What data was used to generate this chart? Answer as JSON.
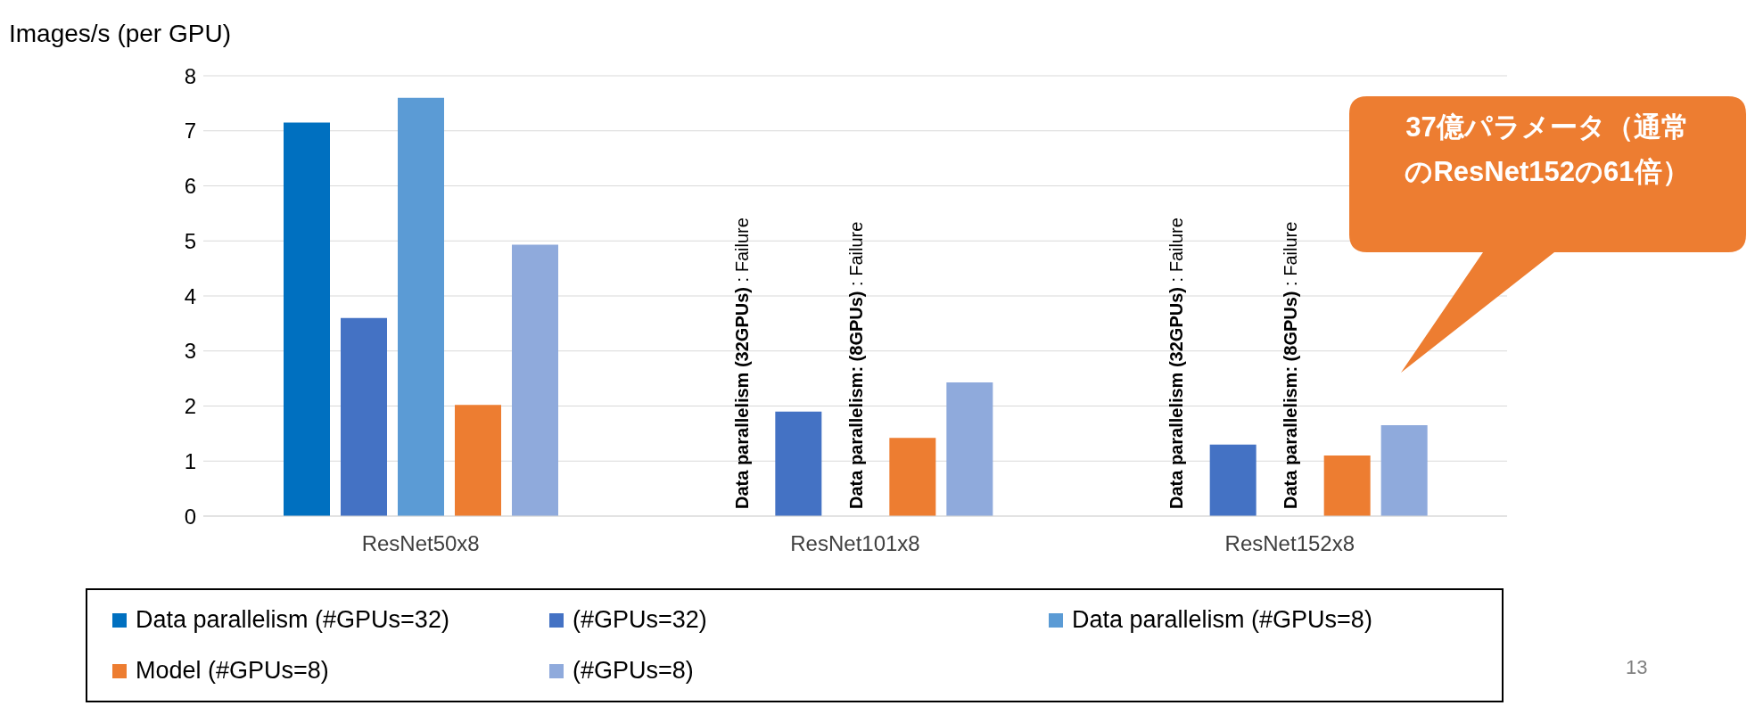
{
  "chart_data": {
    "type": "bar",
    "ylabel": "Images/s (per GPU)",
    "categories": [
      "ResNet50x8",
      "ResNet101x8",
      "ResNet152x8"
    ],
    "series": [
      {
        "name": "Data parallelism (#GPUs=32)",
        "color": "#0070c0",
        "values": [
          7.15,
          null,
          null
        ]
      },
      {
        "name": "(#GPUs=32)",
        "color": "#4472c4",
        "values": [
          3.6,
          1.9,
          1.3
        ]
      },
      {
        "name": "Data parallelism (#GPUs=8)",
        "color": "#5b9bd5",
        "values": [
          7.6,
          null,
          null
        ]
      },
      {
        "name": "Model (#GPUs=8)",
        "color": "#ed7d31",
        "values": [
          2.02,
          1.42,
          1.1
        ]
      },
      {
        "name": "(#GPUs=8)",
        "color": "#8faadc",
        "values": [
          4.93,
          2.43,
          1.65
        ]
      }
    ],
    "ylim": [
      0,
      8
    ],
    "yticks": [
      0,
      1,
      2,
      3,
      4,
      5,
      6,
      7,
      8
    ],
    "grid": "y",
    "legend": "bottom",
    "annotations": [
      "Data parallelism (32GPUs) : Failure",
      "Data parallelism: (8GPUs) : Failure",
      "Data parallelism (32GPUs) : Failure",
      "Data parallelism: (8GPUs) : Failure",
      "37億パラメータ（通常のResNet152の61倍）",
      "13"
    ]
  }
}
